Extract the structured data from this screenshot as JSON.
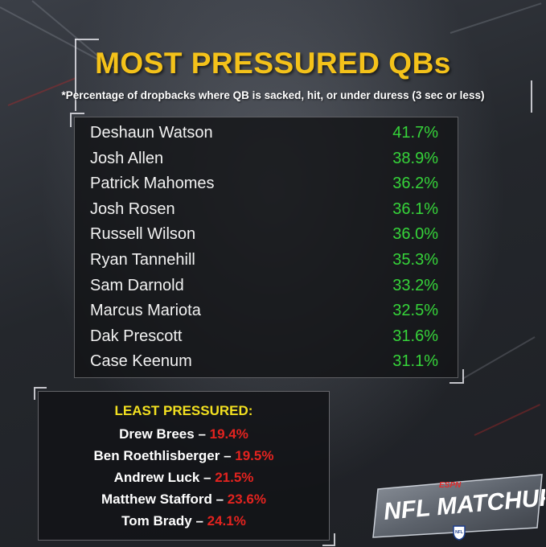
{
  "title": "MOST PRESSURED QBs",
  "subtitle": "*Percentage of dropbacks where QB is sacked, hit, or under duress (3 sec or less)",
  "most_pressured": [
    {
      "name": "Deshaun Watson",
      "pct": "41.7%"
    },
    {
      "name": "Josh Allen",
      "pct": "38.9%"
    },
    {
      "name": "Patrick Mahomes",
      "pct": "36.2%"
    },
    {
      "name": "Josh Rosen",
      "pct": "36.1%"
    },
    {
      "name": "Russell Wilson",
      "pct": "36.0%"
    },
    {
      "name": "Ryan Tannehill",
      "pct": "35.3%"
    },
    {
      "name": "Sam Darnold",
      "pct": "33.2%"
    },
    {
      "name": "Marcus Mariota",
      "pct": "32.5%"
    },
    {
      "name": "Dak Prescott",
      "pct": "31.6%"
    },
    {
      "name": "Case Keenum",
      "pct": "31.1%"
    }
  ],
  "least_pressured": {
    "heading": "LEAST PRESSURED:",
    "separator": " – ",
    "items": [
      {
        "name": "Drew Brees",
        "pct": "19.4%"
      },
      {
        "name": "Ben Roethlisberger",
        "pct": "19.5%"
      },
      {
        "name": "Andrew Luck",
        "pct": "21.5%"
      },
      {
        "name": "Matthew Stafford",
        "pct": "23.6%"
      },
      {
        "name": "Tom Brady",
        "pct": "24.1%"
      }
    ]
  },
  "logo": {
    "network": "ESPN",
    "show": "NFL MATCHUP",
    "league": "NFL"
  },
  "colors": {
    "title": "#f4c21a",
    "value_green": "#36d43a",
    "least_heading": "#f2e020",
    "least_pct_red": "#e3231f"
  }
}
